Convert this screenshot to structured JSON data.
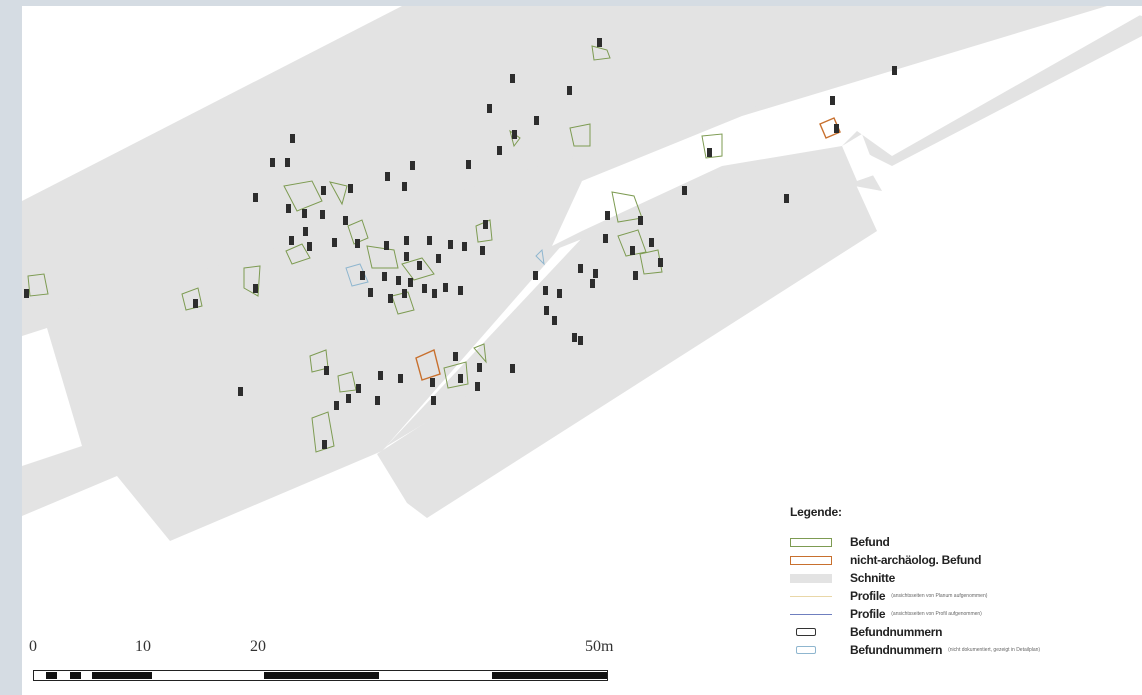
{
  "map": {
    "colors": {
      "trench": "#e3e3e3",
      "befund": "#7d9b52",
      "nonarch": "#c8702e",
      "profile_yellow": "#e9d7a8",
      "profile_blue": "#6f7fbf",
      "label_dark": "#2d2d2d",
      "label_light": "#8fb6cf"
    },
    "scale": {
      "labels": [
        "0",
        "10",
        "20",
        "50m"
      ]
    }
  },
  "legend": {
    "title": "Legende:",
    "items": [
      {
        "symbol": "befund-outline",
        "label": "Befund",
        "note": ""
      },
      {
        "symbol": "nonarch-outline",
        "label": "nicht-archäolog. Befund",
        "note": ""
      },
      {
        "symbol": "trench-fill",
        "label": "Schnitte",
        "note": ""
      },
      {
        "symbol": "profile-yellow-line",
        "label": "Profile",
        "note": "(ansichtsseiten von Planum aufgenommen)"
      },
      {
        "symbol": "profile-blue-line",
        "label": "Profile",
        "note": "(ansichtsseiten von Profil aufgenommen)"
      },
      {
        "symbol": "label-chip-dark",
        "label": "Befundnummern",
        "note": ""
      },
      {
        "symbol": "label-chip-light",
        "label": "Befundnummern",
        "note": "(nicht dokumentiert, gezeigt in Detailplan)"
      }
    ]
  }
}
